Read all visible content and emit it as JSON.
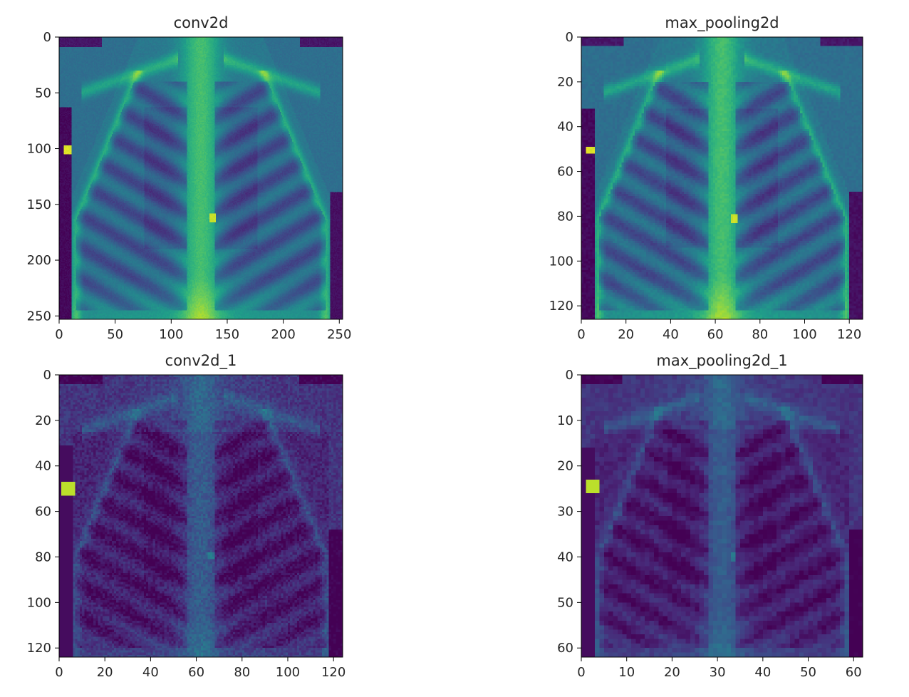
{
  "chart_data": [
    {
      "type": "heatmap",
      "title": "conv2d",
      "xlabel": "",
      "ylabel": "",
      "image_size": [
        253,
        253
      ],
      "xlim": [
        0,
        253
      ],
      "ylim": [
        253,
        0
      ],
      "xticks": [
        0,
        50,
        100,
        150,
        200,
        250
      ],
      "yticks": [
        0,
        50,
        100,
        150,
        200,
        250
      ],
      "colormap": "viridis",
      "content": "chest x-ray feature map (bright ribs, spine and clavicles)",
      "style": "smooth"
    },
    {
      "type": "heatmap",
      "title": "max_pooling2d",
      "xlabel": "",
      "ylabel": "",
      "image_size": [
        126,
        126
      ],
      "xlim": [
        0,
        126
      ],
      "ylim": [
        126,
        0
      ],
      "xticks": [
        0,
        20,
        40,
        60,
        80,
        100,
        120
      ],
      "yticks": [
        0,
        20,
        40,
        60,
        80,
        100,
        120
      ],
      "colormap": "viridis",
      "content": "chest x-ray feature map, downsampled",
      "style": "smooth"
    },
    {
      "type": "heatmap",
      "title": "conv2d_1",
      "xlabel": "",
      "ylabel": "",
      "image_size": [
        124,
        124
      ],
      "xlim": [
        0,
        124
      ],
      "ylim": [
        124,
        0
      ],
      "xticks": [
        0,
        20,
        40,
        60,
        80,
        100,
        120
      ],
      "yticks": [
        0,
        20,
        40,
        60,
        80,
        100,
        120
      ],
      "colormap": "viridis",
      "content": "edge-like feature map, dark lungs, mid-tone body",
      "style": "edges"
    },
    {
      "type": "heatmap",
      "title": "max_pooling2d_1",
      "xlabel": "",
      "ylabel": "",
      "image_size": [
        62,
        62
      ],
      "xlim": [
        0,
        62
      ],
      "ylim": [
        62,
        0
      ],
      "xticks": [
        0,
        10,
        20,
        30,
        40,
        50,
        60
      ],
      "yticks": [
        0,
        10,
        20,
        30,
        40,
        50,
        60
      ],
      "colormap": "viridis",
      "content": "pixelated edge feature map",
      "style": "pixelated"
    }
  ]
}
